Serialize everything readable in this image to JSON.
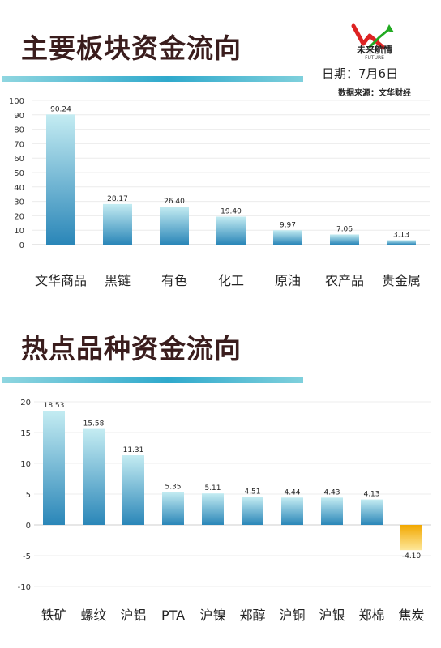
{
  "header": {
    "title1": "主要板块资金流向",
    "title2": "热点品种资金流向",
    "date": "日期：7月6日",
    "source": "数据来源：文华财经",
    "logo_text": "未来航情",
    "logo_sub": "FUTURE",
    "logo_icon": "rising-arrow-logo-icon"
  },
  "colors": {
    "title": "#3a1d1d",
    "bar_top": "#c4ecf2",
    "bar_bottom": "#2a86b8",
    "neg_top": "#f2a800",
    "neg_bottom": "#fde79a",
    "band_left": "#7fd0dc",
    "band_right": "#1fa0c6"
  },
  "chart_data": [
    {
      "type": "bar",
      "categories": [
        "文华商品",
        "黑链",
        "有色",
        "化工",
        "原油",
        "农产品",
        "贵金属"
      ],
      "values": [
        90.24,
        28.17,
        26.4,
        19.4,
        9.97,
        7.06,
        3.13
      ],
      "value_labels": [
        "90.24",
        "28.17",
        "26.40",
        "19.40",
        "9.97",
        "7.06",
        "3.13"
      ],
      "ylim": [
        0,
        100
      ],
      "yticks": [
        0,
        10,
        20,
        30,
        40,
        50,
        60,
        70,
        80,
        90,
        100
      ],
      "grid": true
    },
    {
      "type": "bar",
      "categories": [
        "铁矿",
        "螺纹",
        "沪铝",
        "PTA",
        "沪镍",
        "郑醇",
        "沪铜",
        "沪银",
        "郑棉",
        "焦炭"
      ],
      "values": [
        18.53,
        15.58,
        11.31,
        5.35,
        5.11,
        4.51,
        4.44,
        4.43,
        4.13,
        -4.1
      ],
      "value_labels": [
        "18.53",
        "15.58",
        "11.31",
        "5.35",
        "5.11",
        "4.51",
        "4.44",
        "4.43",
        "4.13",
        "-4.10"
      ],
      "ylim": [
        -10,
        20
      ],
      "yticks": [
        -10,
        -5,
        0,
        5,
        10,
        15,
        20
      ],
      "grid": true
    }
  ]
}
